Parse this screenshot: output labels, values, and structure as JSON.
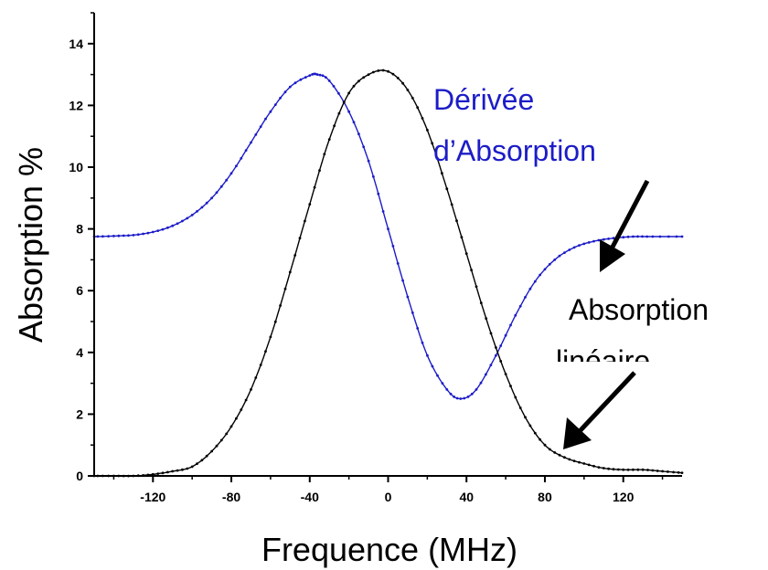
{
  "chart_data": {
    "type": "line",
    "title": "",
    "xlabel": "Frequence (MHz)",
    "ylabel": "Absorption %",
    "xlim": [
      -150,
      150
    ],
    "ylim": [
      0,
      15
    ],
    "x_ticks": [
      "-120",
      "-80",
      "-40",
      "0",
      "40",
      "80",
      "120"
    ],
    "x_tick_values": [
      -120,
      -80,
      -40,
      0,
      40,
      80,
      120
    ],
    "y_ticks": [
      "0",
      "2",
      "4",
      "6",
      "8",
      "10",
      "12",
      "14"
    ],
    "y_tick_values": [
      0,
      2,
      4,
      6,
      8,
      10,
      12,
      14
    ],
    "grid": false,
    "annotations": [
      {
        "id": "derivee-line1",
        "text": "Dérivée",
        "color": "#1c1cc8"
      },
      {
        "id": "derivee-line2",
        "text": "d’Absorption",
        "color": "#1c1cc8"
      },
      {
        "id": "absorption-line1",
        "text": "Absorption",
        "color": "#000000"
      },
      {
        "id": "absorption-line2",
        "text": "linéaire",
        "color": "#000000"
      }
    ],
    "series": [
      {
        "color": "#1c1cc8",
        "x": [
          -150,
          -140,
          -130,
          -120,
          -110,
          -100,
          -90,
          -80,
          -70,
          -60,
          -50,
          -40,
          -36,
          -30,
          -20,
          -10,
          0,
          10,
          20,
          30,
          37,
          45,
          55,
          65,
          75,
          85,
          95,
          105,
          115,
          125,
          135,
          150
        ],
        "y": [
          7.75,
          7.77,
          7.8,
          7.9,
          8.1,
          8.45,
          9.0,
          9.8,
          10.8,
          11.8,
          12.6,
          12.97,
          13.0,
          12.8,
          11.8,
          10.2,
          8.0,
          5.8,
          3.9,
          2.8,
          2.5,
          2.8,
          3.9,
          5.2,
          6.3,
          7.0,
          7.4,
          7.6,
          7.7,
          7.75,
          7.75,
          7.75
        ]
      },
      {
        "color": "#000000",
        "x": [
          -150,
          -140,
          -130,
          -120,
          -110,
          -100,
          -90,
          -80,
          -70,
          -60,
          -50,
          -40,
          -30,
          -20,
          -10,
          0,
          10,
          20,
          30,
          40,
          50,
          60,
          70,
          80,
          90,
          100,
          110,
          120,
          130,
          140,
          150
        ],
        "y": [
          0.0,
          0.0,
          0.0,
          0.05,
          0.15,
          0.3,
          0.8,
          1.6,
          2.8,
          4.5,
          6.6,
          8.8,
          10.9,
          12.4,
          13.0,
          13.1,
          12.5,
          11.2,
          9.3,
          7.2,
          5.1,
          3.3,
          1.9,
          1.0,
          0.6,
          0.4,
          0.25,
          0.2,
          0.2,
          0.15,
          0.1
        ]
      }
    ]
  }
}
